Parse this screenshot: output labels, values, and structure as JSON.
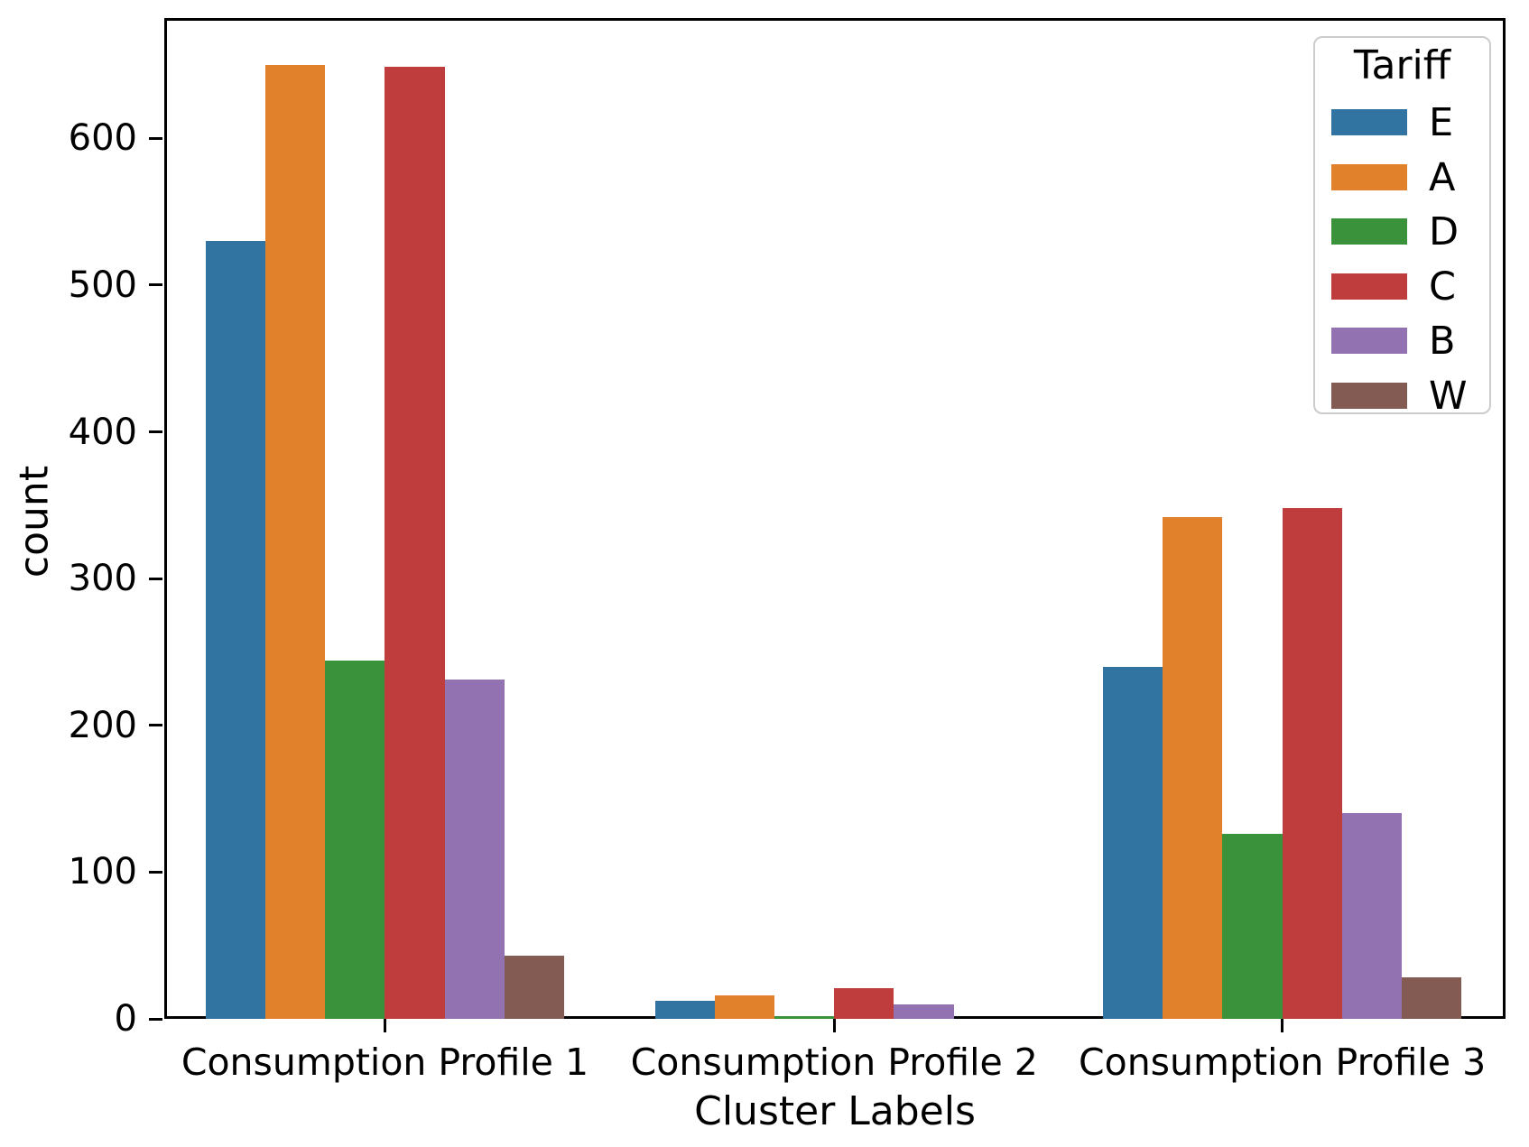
{
  "chart_data": {
    "type": "bar",
    "title": "",
    "xlabel": "Cluster Labels",
    "ylabel": "count",
    "categories": [
      "Consumption Profile 1",
      "Consumption Profile 2",
      "Consumption Profile 3"
    ],
    "series": [
      {
        "name": "E",
        "color": "#3274a1",
        "values": [
          530,
          12,
          240
        ]
      },
      {
        "name": "A",
        "color": "#e1812c",
        "values": [
          650,
          16,
          342
        ]
      },
      {
        "name": "D",
        "color": "#3a923a",
        "values": [
          244,
          2,
          126
        ]
      },
      {
        "name": "C",
        "color": "#c03d3e",
        "values": [
          649,
          21,
          348
        ]
      },
      {
        "name": "B",
        "color": "#9372b2",
        "values": [
          231,
          10,
          140
        ]
      },
      {
        "name": "W",
        "color": "#845b53",
        "values": [
          43,
          0,
          28
        ]
      }
    ],
    "legend": {
      "title": "Tariff",
      "position": "upper right"
    },
    "yticks": [
      0,
      100,
      200,
      300,
      400,
      500,
      600
    ],
    "ylim": [
      0,
      682
    ],
    "grid": false,
    "axis_color": "#000000",
    "background_color": "#ffffff"
  }
}
